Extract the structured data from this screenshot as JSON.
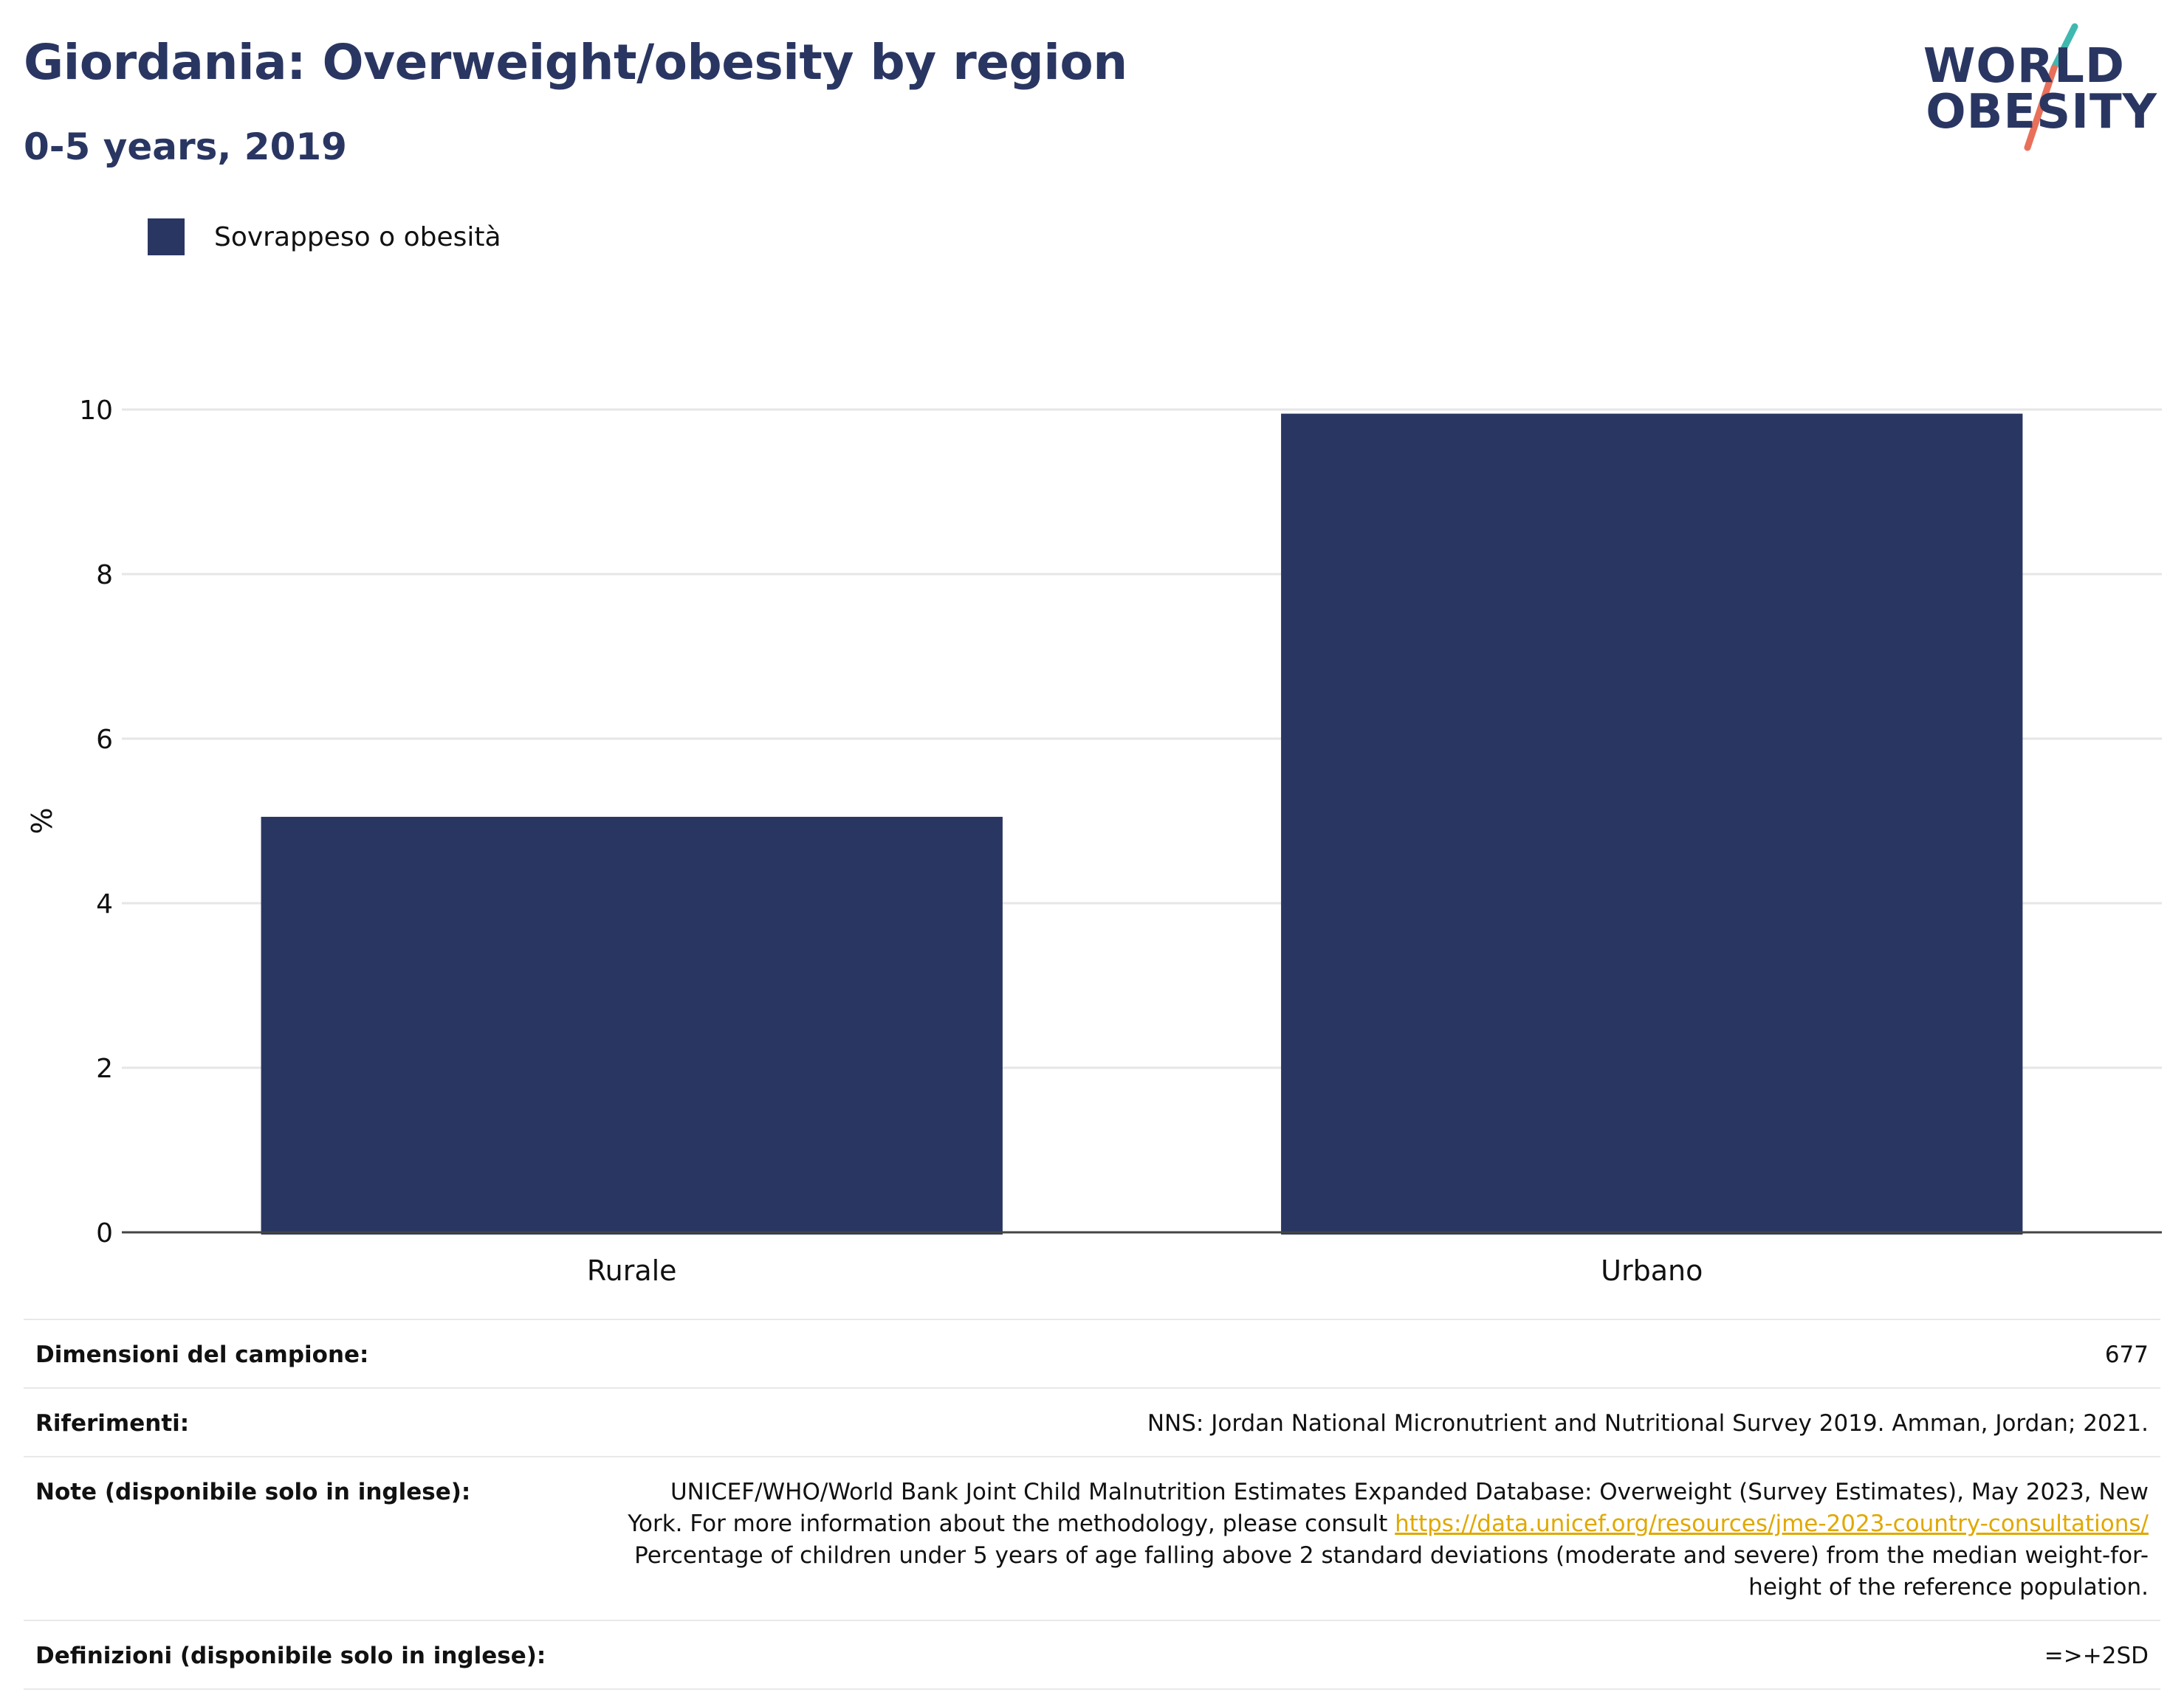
{
  "header": {
    "title": "Giordania: Overweight/obesity by region",
    "subtitle": "0-5 years, 2019"
  },
  "logo": {
    "line1": "WORLD",
    "line2": "OBESITY",
    "accent_colors": [
      "#3fb8b0",
      "#e8705a"
    ]
  },
  "legend": {
    "items": [
      {
        "label": "Sovrappeso o obesità",
        "color": "#2a3662"
      }
    ]
  },
  "chart_data": {
    "type": "bar",
    "categories": [
      "Rurale",
      "Urbano"
    ],
    "series": [
      {
        "name": "Sovrappeso o obesità",
        "values": [
          5.05,
          9.95
        ],
        "color": "#2a3662"
      }
    ],
    "ylabel": "%",
    "ylim": [
      0,
      10
    ],
    "yticks": [
      0,
      2,
      4,
      6,
      8,
      10
    ],
    "grid": true,
    "legend_position": "top-left"
  },
  "info": {
    "sample_size_label": "Dimensioni del campione:",
    "sample_size_value": "677",
    "references_label": "Riferimenti:",
    "references_value": "NNS: Jordan National Micronutrient and Nutritional Survey 2019. Amman, Jordan; 2021.",
    "notes_label": "Note (disponibile solo in inglese):",
    "notes_text_1": "UNICEF/WHO/World Bank Joint Child Malnutrition Estimates Expanded Database: Overweight (Survey Estimates), May 2023, New York. For more information about the methodology, please consult ",
    "notes_link": "https://data.unicef.org/resources/jme-2023-country-consultations/",
    "notes_text_2": " Percentage of children under 5 years of age falling above 2 standard deviations (moderate and severe) from the median weight-for-height of the reference population.",
    "definitions_label": "Definizioni (disponibile solo in inglese):",
    "definitions_value": "=>+2SD"
  }
}
